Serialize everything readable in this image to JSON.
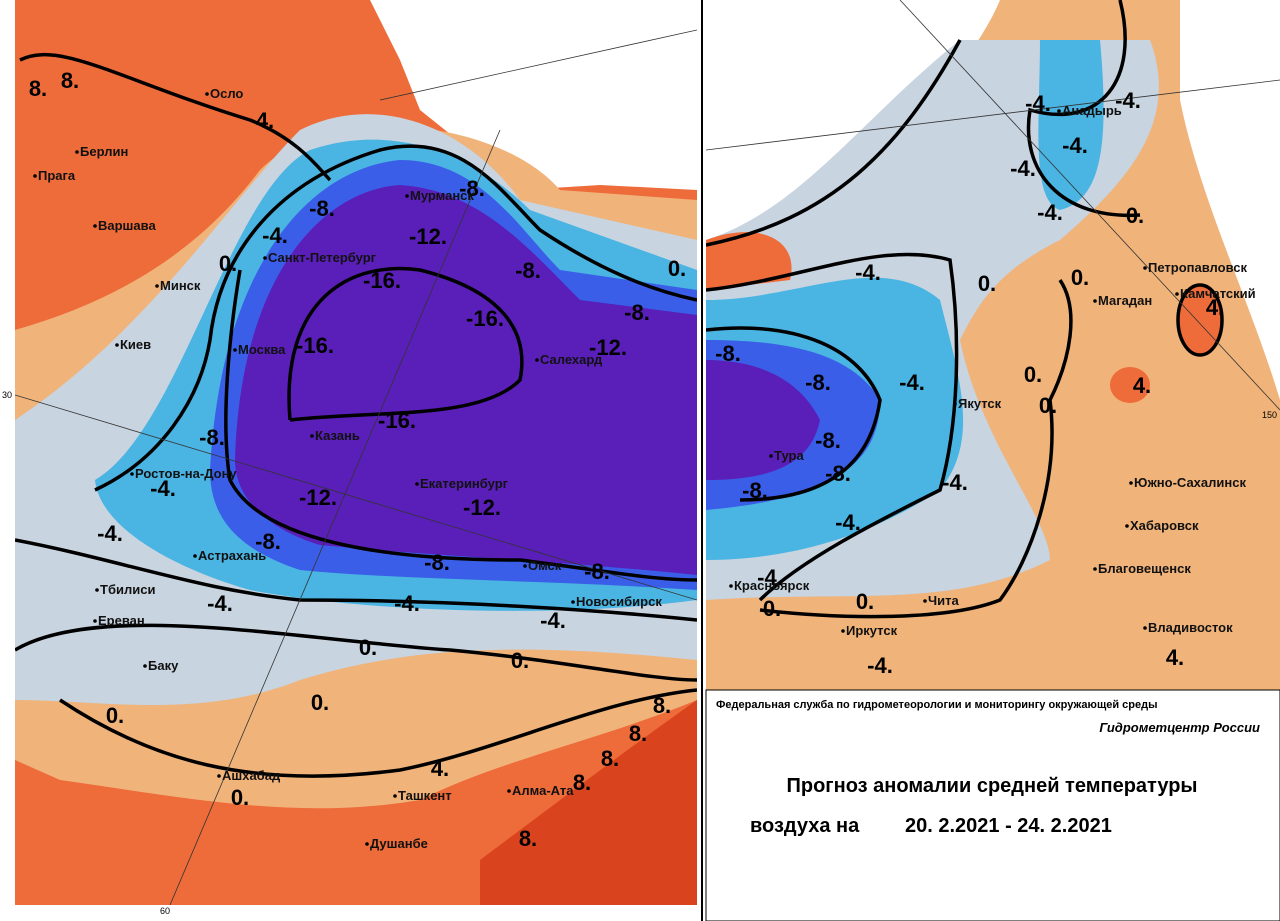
{
  "header": {
    "agency": "Федеральная служба по гидрометеорологии и мониторингу окружающей среды",
    "center": "Гидрометцентр России",
    "title_line1": "Прогноз аномалии средней температуры",
    "title_line2": "воздуха на",
    "period": "20. 2.2021 - 24. 2.2021"
  },
  "map": {
    "grid_labels": [
      "30",
      "150",
      "60"
    ],
    "cities": [
      "Осло",
      "Берлин",
      "Прага",
      "Варшава",
      "Минск",
      "Киев",
      "Санкт-Петербург",
      "Мурманск",
      "Москва",
      "Казань",
      "Ростов-на-Дону",
      "Астрахань",
      "Тбилиси",
      "Ереван",
      "Баку",
      "Салехард",
      "Екатеринбург",
      "Омск",
      "Новосибирск",
      "Ашхабад",
      "Ташкент",
      "Алма-Ата",
      "Душанбе",
      "Анадырь",
      "Петропавловск",
      "Камчатский",
      "Магадан",
      "Якутск",
      "Тура",
      "Южно-Сахалинск",
      "Хабаровск",
      "Благовещенск",
      "Красноярск",
      "Чита",
      "Иркутск",
      "Владивосток"
    ],
    "contour_labels": [
      "8.",
      "8.",
      "4.",
      "-8.",
      "-4.",
      "0.",
      "-8.",
      "-12.",
      "-16.",
      "-16.",
      "-16.",
      "-16.",
      "-12.",
      "-12.",
      "-8.",
      "-8.",
      "-8.",
      "-8.",
      "-4.",
      "-4.",
      "-4.",
      "-4.",
      "-4.",
      "0.",
      "0.",
      "0.",
      "0.",
      "0.",
      "4.",
      "8.",
      "8.",
      "8.",
      "8.",
      "8.",
      "-8.",
      "0.",
      "-8.",
      "-12.",
      "-4.",
      "-4.",
      "-4.",
      "-4.",
      "-4.",
      "0.",
      "-4.",
      "0.",
      "0.",
      "4.",
      "-8.",
      "-8.",
      "-4.",
      "0.",
      "0.",
      "4.",
      "-8.",
      "-8.",
      "-8.",
      "-4.",
      "-4.",
      "-4.",
      "0.",
      "0.",
      "-4.",
      "4."
    ]
  }
}
